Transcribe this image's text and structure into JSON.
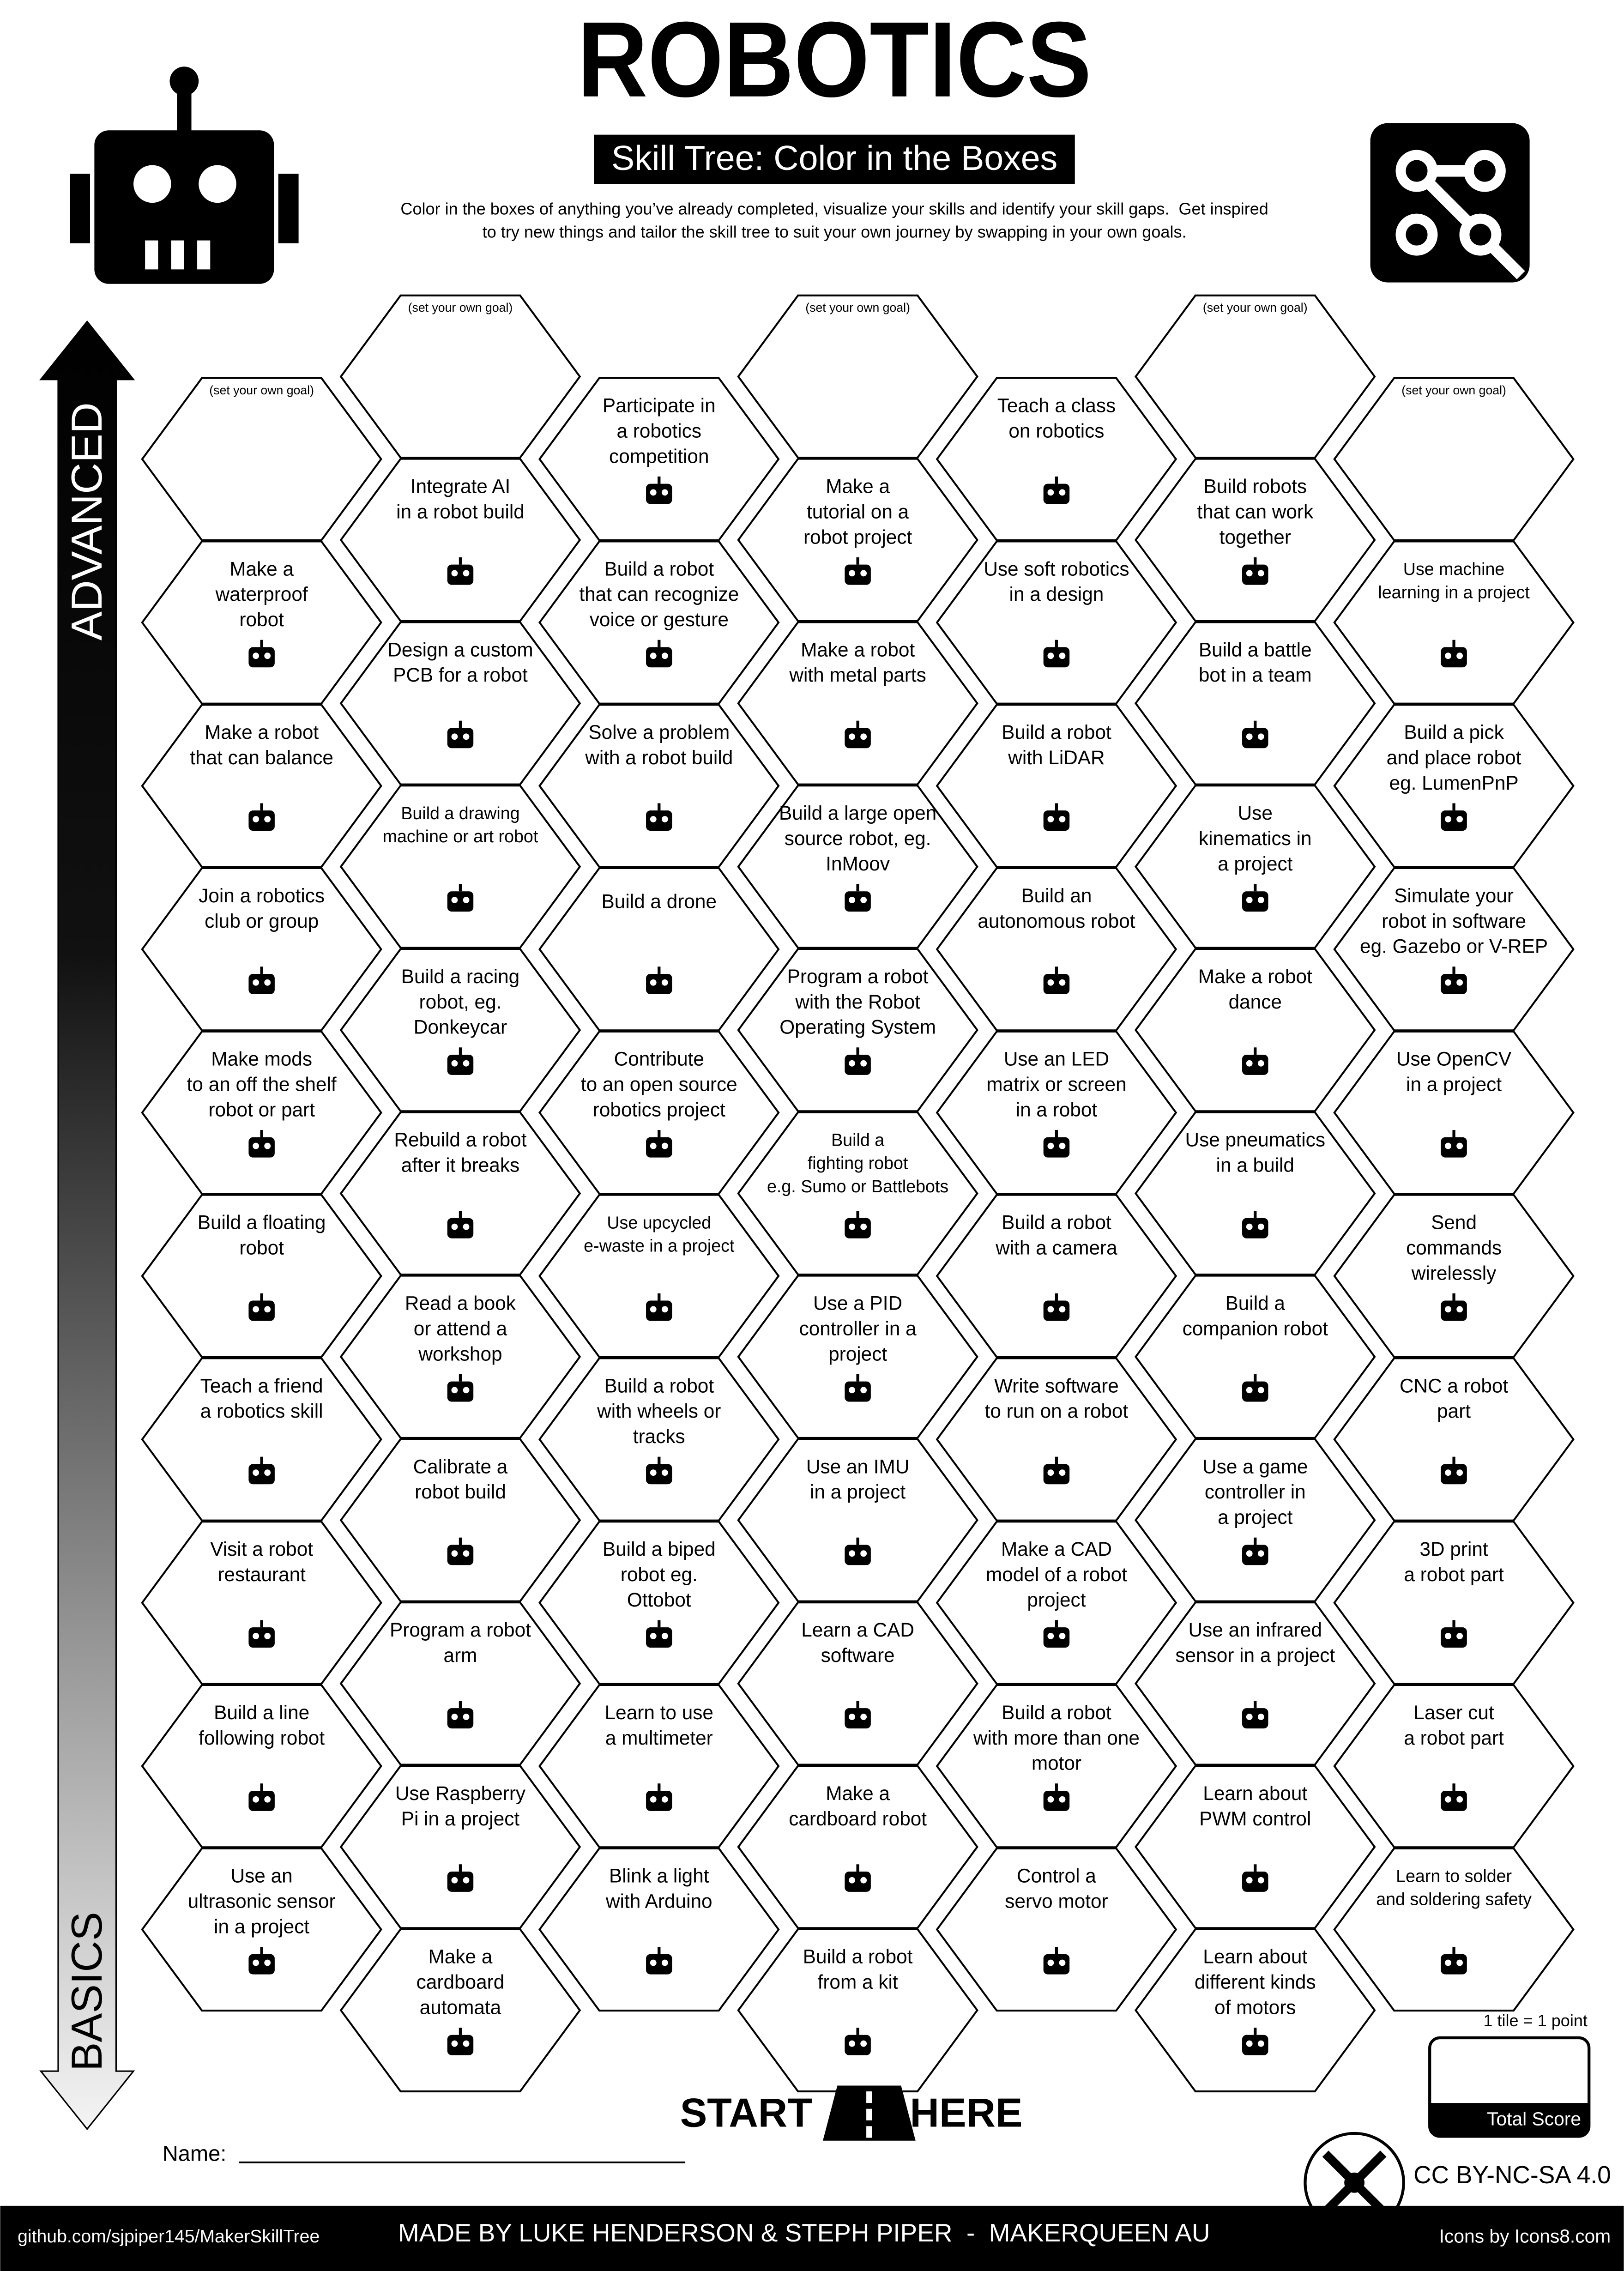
{
  "header": {
    "title": "ROBOTICS",
    "subtitle": "Skill Tree: Color in the Boxes",
    "intro": [
      "Color in the boxes of anything you’ve already completed, visualize your skills and identify your skill gaps.  Get inspired",
      "to try new things and tailor the skill tree to suit your own journey by swapping in your own goals."
    ]
  },
  "axis": {
    "top": "ADVANCED",
    "bottom": "BASICS"
  },
  "columns": [
    [
      {
        "goal": "(set your own goal)"
      },
      {
        "lines": [
          "Make a",
          "waterproof",
          "robot"
        ]
      },
      {
        "lines": [
          "Make a robot",
          "that can balance"
        ]
      },
      {
        "lines": [
          "Join a robotics",
          "club or group"
        ]
      },
      {
        "lines": [
          "Make mods",
          "to an off the shelf",
          "robot or part"
        ]
      },
      {
        "lines": [
          "Build a floating",
          "robot"
        ]
      },
      {
        "lines": [
          "Teach a friend",
          "a robotics skill"
        ]
      },
      {
        "lines": [
          "Visit a robot",
          "restaurant"
        ]
      },
      {
        "lines": [
          "Build a line",
          "following robot"
        ]
      },
      {
        "lines": [
          "Use an",
          "ultrasonic sensor",
          "in a project"
        ]
      }
    ],
    [
      {
        "goal": "(set your own goal)"
      },
      {
        "lines": [
          "Integrate AI",
          "in a robot build"
        ]
      },
      {
        "lines": [
          "Design a custom",
          "PCB for a robot"
        ]
      },
      {
        "lines": [
          "Build a drawing",
          "machine or art robot"
        ]
      },
      {
        "lines": [
          "Build a racing",
          "robot, eg.",
          "Donkeycar"
        ]
      },
      {
        "lines": [
          "Rebuild a robot",
          "after it breaks"
        ]
      },
      {
        "lines": [
          "Read a book",
          "or attend a",
          "workshop"
        ]
      },
      {
        "lines": [
          "Calibrate a",
          "robot build"
        ]
      },
      {
        "lines": [
          "Program a robot",
          "arm"
        ]
      },
      {
        "lines": [
          "Use Raspberry",
          "Pi in a project"
        ]
      },
      {
        "lines": [
          "Make a",
          "cardboard",
          "automata"
        ]
      }
    ],
    [
      {
        "lines": [
          "Participate in",
          "a robotics",
          "competition"
        ]
      },
      {
        "lines": [
          "Build a robot",
          "that can recognize",
          "voice or gesture"
        ]
      },
      {
        "lines": [
          "Solve a problem",
          "with a robot build"
        ]
      },
      {
        "lines": [
          "Build a drone"
        ]
      },
      {
        "lines": [
          "Contribute",
          "to an open source",
          "robotics project"
        ]
      },
      {
        "lines": [
          "Use upcycled",
          "e-waste in a project"
        ]
      },
      {
        "lines": [
          "Build a robot",
          "with wheels or",
          "tracks"
        ]
      },
      {
        "lines": [
          "Build a biped",
          "robot eg.",
          "Ottobot"
        ]
      },
      {
        "lines": [
          "Learn to use",
          "a multimeter"
        ]
      },
      {
        "lines": [
          "Blink a light",
          "with Arduino"
        ]
      }
    ],
    [
      {
        "goal": "(set your own goal)"
      },
      {
        "lines": [
          "Make a",
          "tutorial on a",
          "robot project"
        ]
      },
      {
        "lines": [
          "Make a robot",
          "with metal parts"
        ]
      },
      {
        "lines": [
          "Build a large open",
          "source robot, eg.",
          "InMoov"
        ]
      },
      {
        "lines": [
          "Program a robot",
          "with the Robot",
          "Operating System"
        ]
      },
      {
        "lines": [
          "Build a",
          "fighting robot",
          "e.g. Sumo or Battlebots"
        ]
      },
      {
        "lines": [
          "Use a PID",
          "controller in a",
          "project"
        ]
      },
      {
        "lines": [
          "Use an IMU",
          "in a project"
        ]
      },
      {
        "lines": [
          "Learn a CAD",
          "software"
        ]
      },
      {
        "lines": [
          "Make a",
          "cardboard robot"
        ]
      },
      {
        "lines": [
          "Build a robot",
          "from a kit"
        ]
      }
    ],
    [
      {
        "lines": [
          "Teach a class",
          "on robotics"
        ]
      },
      {
        "lines": [
          "Use soft robotics",
          "in a design"
        ]
      },
      {
        "lines": [
          "Build a robot",
          "with LiDAR"
        ]
      },
      {
        "lines": [
          "Build an",
          "autonomous robot"
        ]
      },
      {
        "lines": [
          "Use an LED",
          "matrix or screen",
          "in a robot"
        ]
      },
      {
        "lines": [
          "Build a robot",
          "with a camera"
        ]
      },
      {
        "lines": [
          "Write software",
          "to run on a robot"
        ]
      },
      {
        "lines": [
          "Make a CAD",
          "model of a robot",
          "project"
        ]
      },
      {
        "lines": [
          "Build a robot",
          "with more than one",
          "motor"
        ]
      },
      {
        "lines": [
          "Control a",
          "servo motor"
        ]
      }
    ],
    [
      {
        "goal": "(set your own goal)"
      },
      {
        "lines": [
          "Build robots",
          "that can work",
          "together"
        ]
      },
      {
        "lines": [
          "Build a battle",
          "bot in a team"
        ]
      },
      {
        "lines": [
          "Use",
          "kinematics in",
          "a project"
        ]
      },
      {
        "lines": [
          "Make a robot",
          "dance"
        ]
      },
      {
        "lines": [
          "Use pneumatics",
          "in a build"
        ]
      },
      {
        "lines": [
          "Build a",
          "companion robot"
        ]
      },
      {
        "lines": [
          "Use a game",
          "controller in",
          "a project"
        ]
      },
      {
        "lines": [
          "Use an infrared",
          "sensor in a project"
        ]
      },
      {
        "lines": [
          "Learn about",
          "PWM control"
        ]
      },
      {
        "lines": [
          "Learn about",
          "different kinds",
          "of motors"
        ]
      }
    ],
    [
      {
        "goal": "(set your own goal)"
      },
      {
        "lines": [
          "Use machine",
          "learning in a project"
        ]
      },
      {
        "lines": [
          "Build a pick",
          "and place robot",
          "eg. LumenPnP"
        ]
      },
      {
        "lines": [
          "Simulate your",
          "robot in software",
          "eg. Gazebo or V-REP"
        ]
      },
      {
        "lines": [
          "Use OpenCV",
          "in a project"
        ]
      },
      {
        "lines": [
          "Send",
          "commands",
          "wirelessly"
        ]
      },
      {
        "lines": [
          "CNC a robot",
          "part"
        ]
      },
      {
        "lines": [
          "3D print",
          "a robot part"
        ]
      },
      {
        "lines": [
          "Laser cut",
          "a robot part"
        ]
      },
      {
        "lines": [
          "Learn to solder",
          "and soldering safety"
        ]
      }
    ]
  ],
  "start": {
    "left": "START",
    "right": "HERE"
  },
  "name_label": "Name:",
  "score": {
    "note": "1 tile = 1 point",
    "label": "Total Score"
  },
  "license": "CC BY-NC-SA 4.0",
  "footer": {
    "left": "github.com/sjpiper145/MakerSkillTree",
    "center": "MADE BY LUKE HENDERSON & STEPH PIPER  -  MAKERQUEEN AU",
    "right": "Icons by Icons8.com"
  }
}
